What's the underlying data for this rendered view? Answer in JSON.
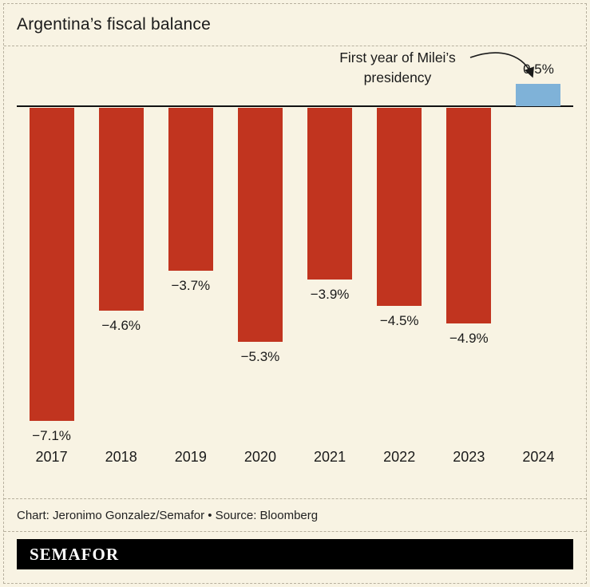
{
  "page": {
    "background": "#f8f3e3"
  },
  "header": {
    "title": "Argentina’s fiscal balance"
  },
  "chart_data": {
    "type": "bar",
    "title": "Argentina’s fiscal balance",
    "categories": [
      "2017",
      "2018",
      "2019",
      "2020",
      "2021",
      "2022",
      "2023",
      "2024"
    ],
    "values": [
      -7.1,
      -4.6,
      -3.7,
      -5.3,
      -3.9,
      -4.5,
      -4.9,
      0.5
    ],
    "labels": [
      "−7.1%",
      "−4.6%",
      "−3.7%",
      "−5.3%",
      "−3.9%",
      "−4.5%",
      "−4.9%",
      "0.5%"
    ],
    "unit": "%",
    "xlabel": "",
    "ylabel": "",
    "ylim": [
      -7.5,
      1
    ],
    "grid": false,
    "legend": "none",
    "colors": {
      "negative": "#c1341f",
      "positive": "#7fb2d8",
      "baseline": "#111111"
    },
    "annotation": {
      "line1": "First year of Milei’s",
      "line2": "presidency"
    }
  },
  "footer": {
    "credit": "Chart: Jeronimo Gonzalez/Semafor • Source: Bloomberg",
    "logo": "SEMAFOR"
  }
}
